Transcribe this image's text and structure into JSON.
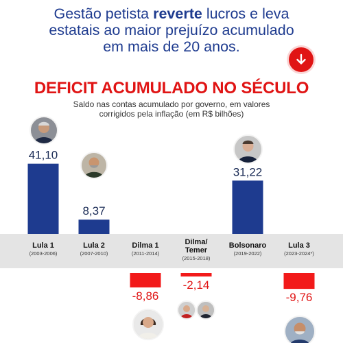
{
  "headline": {
    "part1": "Gestão petista ",
    "emphasis": "reverte",
    "part2": " lucros e leva",
    "line2": "estatais ao maior prejuízo acumulado",
    "line3": "em mais de 20 anos."
  },
  "icons": {
    "badge": "arrow-down-icon"
  },
  "colors": {
    "positive": "#1e3b8f",
    "negative": "#f21a1a",
    "title": "#e01414",
    "headline": "#1e3b8f",
    "band": "#e4e4e4"
  },
  "chart_data": {
    "type": "bar",
    "title": "DEFICIT ACUMULADO NO SÉCULO",
    "subtitle_line1": "Saldo nas contas acumulado por governo, em valores",
    "subtitle_line2": "corrigidos pela inflação (em R$ bilhões)",
    "categories": [
      {
        "name": "Lula 1",
        "period": "(2003-2006)"
      },
      {
        "name": "Lula 2",
        "period": "(2007-2010)"
      },
      {
        "name": "Dilma 1",
        "period": "(2011-2014)"
      },
      {
        "name": "Dilma/\nTemer",
        "period": "(2015-2018)"
      },
      {
        "name": "Bolsonaro",
        "period": "(2019-2022)"
      },
      {
        "name": "Lula 3",
        "period": "(2023-2024*)"
      }
    ],
    "values": [
      41.1,
      8.37,
      -8.86,
      -2.14,
      31.22,
      -9.76
    ],
    "value_labels": [
      "41,10",
      "8,37",
      "-8,86",
      "-2,14",
      "31,22",
      "-9,76"
    ],
    "ylim": [
      -10,
      42
    ]
  }
}
